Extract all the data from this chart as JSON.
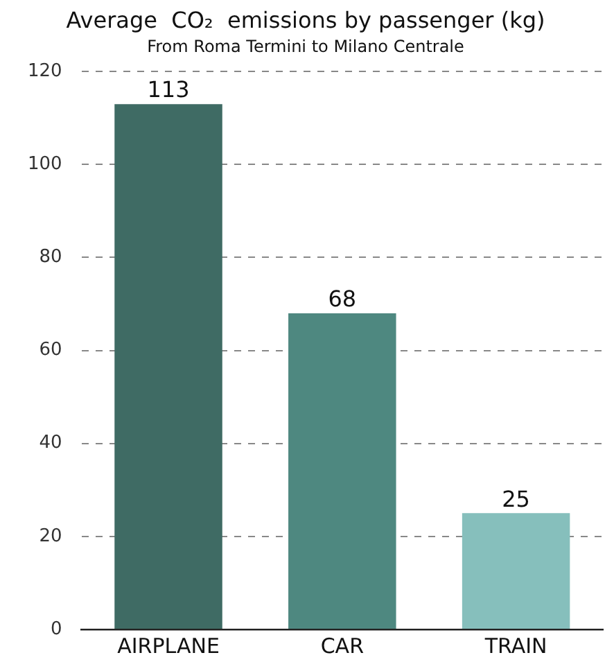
{
  "chart_data": {
    "type": "bar",
    "title": "Average  CO₂  emissions by passenger (kg)",
    "subtitle": "From Roma Termini to Milano Centrale",
    "categories": [
      "AIRPLANE",
      "CAR",
      "TRAIN"
    ],
    "values": [
      113,
      68,
      25
    ],
    "colors": [
      "#3f6b64",
      "#4e8880",
      "#86bfbc"
    ],
    "ylim": [
      0,
      120
    ],
    "yticks": [
      0,
      20,
      40,
      60,
      80,
      100,
      120
    ],
    "grid": "y",
    "data_labels": true,
    "legend": false
  }
}
